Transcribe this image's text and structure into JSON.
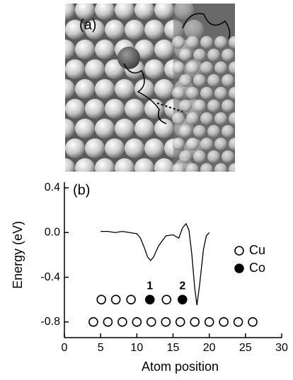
{
  "panel_a": {
    "label": "(a)"
  },
  "chart_data": {
    "type": "scatter",
    "panel_label": "(b)",
    "xlabel": "Atom position",
    "ylabel": "Energy (eV)",
    "xlim": [
      0,
      30
    ],
    "xticks": [
      0,
      5,
      10,
      15,
      20,
      25,
      30
    ],
    "ylim": [
      -0.94,
      0.45
    ],
    "yticks": [
      0.4,
      {
        "value": 0,
        "label": "0.0"
      },
      -0.4,
      -0.8
    ],
    "line": {
      "color": "#000000",
      "x": [
        5,
        6,
        7,
        8,
        9,
        10,
        10.5,
        11,
        11.5,
        11.9,
        12.3,
        13,
        14,
        15,
        15.8,
        16.3,
        16.8,
        17.2,
        17.6,
        18,
        18.3,
        18.7,
        19.2,
        19.6,
        20
      ],
      "values": [
        0.01,
        0.01,
        0,
        0.01,
        0,
        -0.01,
        -0.05,
        -0.13,
        -0.22,
        -0.25,
        -0.22,
        -0.12,
        -0.03,
        -0.02,
        -0.05,
        0.04,
        0.08,
        0.02,
        -0.2,
        -0.5,
        -0.65,
        -0.45,
        -0.15,
        -0.03,
        0
      ]
    },
    "series": [
      {
        "name": "Cu",
        "color": "#000000",
        "marker_fill": "#ffffff",
        "x": [
          4,
          6,
          8,
          10,
          12,
          14,
          16,
          18,
          20,
          22,
          24,
          26,
          5.1,
          7.1,
          9.2,
          14.1
        ],
        "values": [
          -0.8,
          -0.8,
          -0.8,
          -0.8,
          -0.8,
          -0.8,
          -0.8,
          -0.8,
          -0.8,
          -0.8,
          -0.8,
          -0.8,
          -0.6,
          -0.6,
          -0.6,
          -0.6
        ]
      },
      {
        "name": "Co",
        "color": "#000000",
        "marker_fill": "#000000",
        "x": [
          11.8,
          16.3
        ],
        "values": [
          -0.6,
          -0.6
        ]
      }
    ],
    "annotations": [
      {
        "text": "1",
        "x": 11.8,
        "y": -0.6
      },
      {
        "text": "2",
        "x": 16.3,
        "y": -0.6
      }
    ]
  }
}
